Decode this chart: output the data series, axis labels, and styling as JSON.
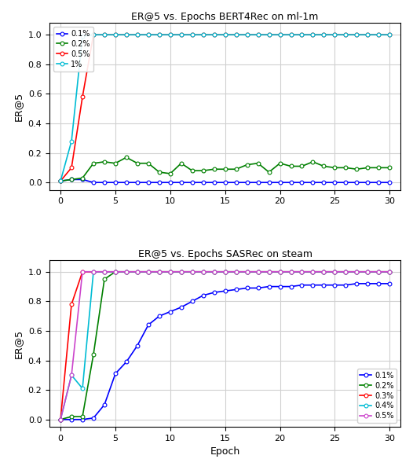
{
  "chart1": {
    "title": "ER@5 vs. Epochs BERT4Rec on ml-1m",
    "ylabel": "ER@5",
    "xlabel": "",
    "xlim": [
      -1,
      31
    ],
    "ylim": [
      -0.05,
      1.08
    ],
    "yticks": [
      0.0,
      0.2,
      0.4,
      0.6,
      0.8,
      1.0
    ],
    "xticks": [
      0,
      5,
      10,
      15,
      20,
      25,
      30
    ],
    "series": [
      {
        "label": "0.1%",
        "color": "#0000ff",
        "epochs": [
          0,
          1,
          2,
          3,
          4,
          5,
          6,
          7,
          8,
          9,
          10,
          11,
          12,
          13,
          14,
          15,
          16,
          17,
          18,
          19,
          20,
          21,
          22,
          23,
          24,
          25,
          26,
          27,
          28,
          29,
          30
        ],
        "values": [
          0.01,
          0.02,
          0.02,
          0.0,
          0.0,
          0.0,
          0.0,
          0.0,
          0.0,
          0.0,
          0.0,
          0.0,
          0.0,
          0.0,
          0.0,
          0.0,
          0.0,
          0.0,
          0.0,
          0.0,
          0.0,
          0.0,
          0.0,
          0.0,
          0.0,
          0.0,
          0.0,
          0.0,
          0.0,
          0.0,
          0.0
        ]
      },
      {
        "label": "0.2%",
        "color": "#008000",
        "epochs": [
          0,
          1,
          2,
          3,
          4,
          5,
          6,
          7,
          8,
          9,
          10,
          11,
          12,
          13,
          14,
          15,
          16,
          17,
          18,
          19,
          20,
          21,
          22,
          23,
          24,
          25,
          26,
          27,
          28,
          29,
          30
        ],
        "values": [
          0.01,
          0.02,
          0.03,
          0.13,
          0.14,
          0.13,
          0.17,
          0.13,
          0.13,
          0.07,
          0.06,
          0.13,
          0.08,
          0.08,
          0.09,
          0.09,
          0.09,
          0.12,
          0.13,
          0.07,
          0.13,
          0.11,
          0.11,
          0.14,
          0.11,
          0.1,
          0.1,
          0.09,
          0.1,
          0.1,
          0.1
        ]
      },
      {
        "label": "0.5%",
        "color": "#ff0000",
        "epochs": [
          0,
          1,
          2,
          3,
          4,
          5,
          6,
          7,
          8,
          9,
          10,
          11,
          12,
          13,
          14,
          15,
          16,
          17,
          18,
          19,
          20,
          21,
          22,
          23,
          24,
          25,
          26,
          27,
          28,
          29,
          30
        ],
        "values": [
          0.01,
          0.1,
          0.58,
          1.0,
          1.0,
          1.0,
          1.0,
          1.0,
          1.0,
          1.0,
          1.0,
          1.0,
          1.0,
          1.0,
          1.0,
          1.0,
          1.0,
          1.0,
          1.0,
          1.0,
          1.0,
          1.0,
          1.0,
          1.0,
          1.0,
          1.0,
          1.0,
          1.0,
          1.0,
          1.0,
          1.0
        ]
      },
      {
        "label": "1%",
        "color": "#00bcd4",
        "epochs": [
          0,
          1,
          2,
          3,
          4,
          5,
          6,
          7,
          8,
          9,
          10,
          11,
          12,
          13,
          14,
          15,
          16,
          17,
          18,
          19,
          20,
          21,
          22,
          23,
          24,
          25,
          26,
          27,
          28,
          29,
          30
        ],
        "values": [
          0.01,
          0.28,
          0.99,
          1.0,
          1.0,
          1.0,
          1.0,
          1.0,
          1.0,
          1.0,
          1.0,
          1.0,
          1.0,
          1.0,
          1.0,
          1.0,
          1.0,
          1.0,
          1.0,
          1.0,
          1.0,
          1.0,
          1.0,
          1.0,
          1.0,
          1.0,
          1.0,
          1.0,
          1.0,
          1.0,
          1.0
        ]
      }
    ],
    "legend_loc": "upper left"
  },
  "chart2": {
    "title": "ER@5 vs. Epochs SASRec on steam",
    "ylabel": "ER@5",
    "xlabel": "Epoch",
    "xlim": [
      -1,
      31
    ],
    "ylim": [
      -0.05,
      1.08
    ],
    "yticks": [
      0.0,
      0.2,
      0.4,
      0.6,
      0.8,
      1.0
    ],
    "xticks": [
      0,
      5,
      10,
      15,
      20,
      25,
      30
    ],
    "series": [
      {
        "label": "0.1%",
        "color": "#0000ff",
        "epochs": [
          0,
          1,
          2,
          3,
          4,
          5,
          6,
          7,
          8,
          9,
          10,
          11,
          12,
          13,
          14,
          15,
          16,
          17,
          18,
          19,
          20,
          21,
          22,
          23,
          24,
          25,
          26,
          27,
          28,
          29,
          30
        ],
        "values": [
          0.0,
          0.0,
          0.0,
          0.01,
          0.1,
          0.31,
          0.39,
          0.5,
          0.64,
          0.7,
          0.73,
          0.76,
          0.8,
          0.84,
          0.86,
          0.87,
          0.88,
          0.89,
          0.89,
          0.9,
          0.9,
          0.9,
          0.91,
          0.91,
          0.91,
          0.91,
          0.91,
          0.92,
          0.92,
          0.92,
          0.92
        ]
      },
      {
        "label": "0.2%",
        "color": "#008000",
        "epochs": [
          0,
          1,
          2,
          3,
          4,
          5,
          6,
          7,
          8,
          9,
          10,
          11,
          12,
          13,
          14,
          15,
          16,
          17,
          18,
          19,
          20,
          21,
          22,
          23,
          24,
          25,
          26,
          27,
          28,
          29,
          30
        ],
        "values": [
          0.0,
          0.02,
          0.02,
          0.44,
          0.95,
          1.0,
          1.0,
          1.0,
          1.0,
          1.0,
          1.0,
          1.0,
          1.0,
          1.0,
          1.0,
          1.0,
          1.0,
          1.0,
          1.0,
          1.0,
          1.0,
          1.0,
          1.0,
          1.0,
          1.0,
          1.0,
          1.0,
          1.0,
          1.0,
          1.0,
          1.0
        ]
      },
      {
        "label": "0.3%",
        "color": "#ff0000",
        "epochs": [
          0,
          1,
          2,
          3,
          4,
          5,
          6,
          7,
          8,
          9,
          10,
          11,
          12,
          13,
          14,
          15,
          16,
          17,
          18,
          19,
          20,
          21,
          22,
          23,
          24,
          25,
          26,
          27,
          28,
          29,
          30
        ],
        "values": [
          0.0,
          0.78,
          1.0,
          1.0,
          1.0,
          1.0,
          1.0,
          1.0,
          1.0,
          1.0,
          1.0,
          1.0,
          1.0,
          1.0,
          1.0,
          1.0,
          1.0,
          1.0,
          1.0,
          1.0,
          1.0,
          1.0,
          1.0,
          1.0,
          1.0,
          1.0,
          1.0,
          1.0,
          1.0,
          1.0,
          1.0
        ]
      },
      {
        "label": "0.4%",
        "color": "#00bcd4",
        "epochs": [
          0,
          1,
          2,
          3,
          4,
          5,
          6,
          7,
          8,
          9,
          10,
          11,
          12,
          13,
          14,
          15,
          16,
          17,
          18,
          19,
          20,
          21,
          22,
          23,
          24,
          25,
          26,
          27,
          28,
          29,
          30
        ],
        "values": [
          0.0,
          0.3,
          0.21,
          1.0,
          1.0,
          1.0,
          1.0,
          1.0,
          1.0,
          1.0,
          1.0,
          1.0,
          1.0,
          1.0,
          1.0,
          1.0,
          1.0,
          1.0,
          1.0,
          1.0,
          1.0,
          1.0,
          1.0,
          1.0,
          1.0,
          1.0,
          1.0,
          1.0,
          1.0,
          1.0,
          1.0
        ]
      },
      {
        "label": "0.5%",
        "color": "#cc44cc",
        "epochs": [
          0,
          1,
          2,
          3,
          4,
          5,
          6,
          7,
          8,
          9,
          10,
          11,
          12,
          13,
          14,
          15,
          16,
          17,
          18,
          19,
          20,
          21,
          22,
          23,
          24,
          25,
          26,
          27,
          28,
          29,
          30
        ],
        "values": [
          0.0,
          0.3,
          1.0,
          1.0,
          1.0,
          1.0,
          1.0,
          1.0,
          1.0,
          1.0,
          1.0,
          1.0,
          1.0,
          1.0,
          1.0,
          1.0,
          1.0,
          1.0,
          1.0,
          1.0,
          1.0,
          1.0,
          1.0,
          1.0,
          1.0,
          1.0,
          1.0,
          1.0,
          1.0,
          1.0,
          1.0
        ]
      }
    ],
    "legend_loc": "lower right"
  },
  "figure_bg": "#ffffff",
  "axes_bg": "#ffffff",
  "grid_color": "#d0d0d0",
  "marker": "o",
  "markersize": 3.5,
  "linewidth": 1.2
}
